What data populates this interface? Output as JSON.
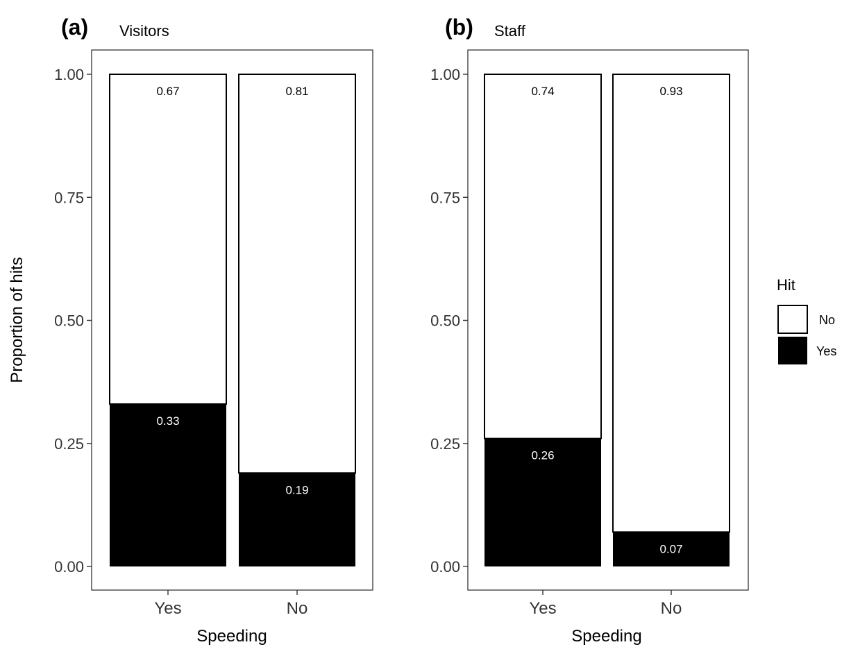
{
  "y_axis_title": "Proportion of hits",
  "legend": {
    "title": "Hit",
    "entries": [
      {
        "label": "No",
        "color": "#ffffff"
      },
      {
        "label": "Yes",
        "color": "#000000"
      }
    ]
  },
  "chart_data": [
    {
      "type": "bar",
      "stacked": true,
      "tag": "(a)",
      "title": "Visitors",
      "xlabel": "Speeding",
      "ylabel": "Proportion of hits",
      "categories": [
        "Yes",
        "No"
      ],
      "ylim": [
        0,
        1
      ],
      "yticks": [
        "0.00",
        "0.25",
        "0.50",
        "0.75",
        "1.00"
      ],
      "series": [
        {
          "name": "Yes",
          "color": "#000000",
          "values": [
            0.33,
            0.19
          ],
          "labels": [
            "0.33",
            "0.19"
          ]
        },
        {
          "name": "No",
          "color": "#ffffff",
          "values": [
            0.67,
            0.81
          ],
          "labels": [
            "0.67",
            "0.81"
          ]
        }
      ],
      "grid": false
    },
    {
      "type": "bar",
      "stacked": true,
      "tag": "(b)",
      "title": "Staff",
      "xlabel": "Speeding",
      "ylabel": "",
      "categories": [
        "Yes",
        "No"
      ],
      "ylim": [
        0,
        1
      ],
      "yticks": [
        "0.00",
        "0.25",
        "0.50",
        "0.75",
        "1.00"
      ],
      "series": [
        {
          "name": "Yes",
          "color": "#000000",
          "values": [
            0.26,
            0.07
          ],
          "labels": [
            "0.26",
            "0.07"
          ]
        },
        {
          "name": "No",
          "color": "#ffffff",
          "values": [
            0.74,
            0.93
          ],
          "labels": [
            "0.74",
            "0.93"
          ]
        }
      ],
      "grid": false
    }
  ]
}
